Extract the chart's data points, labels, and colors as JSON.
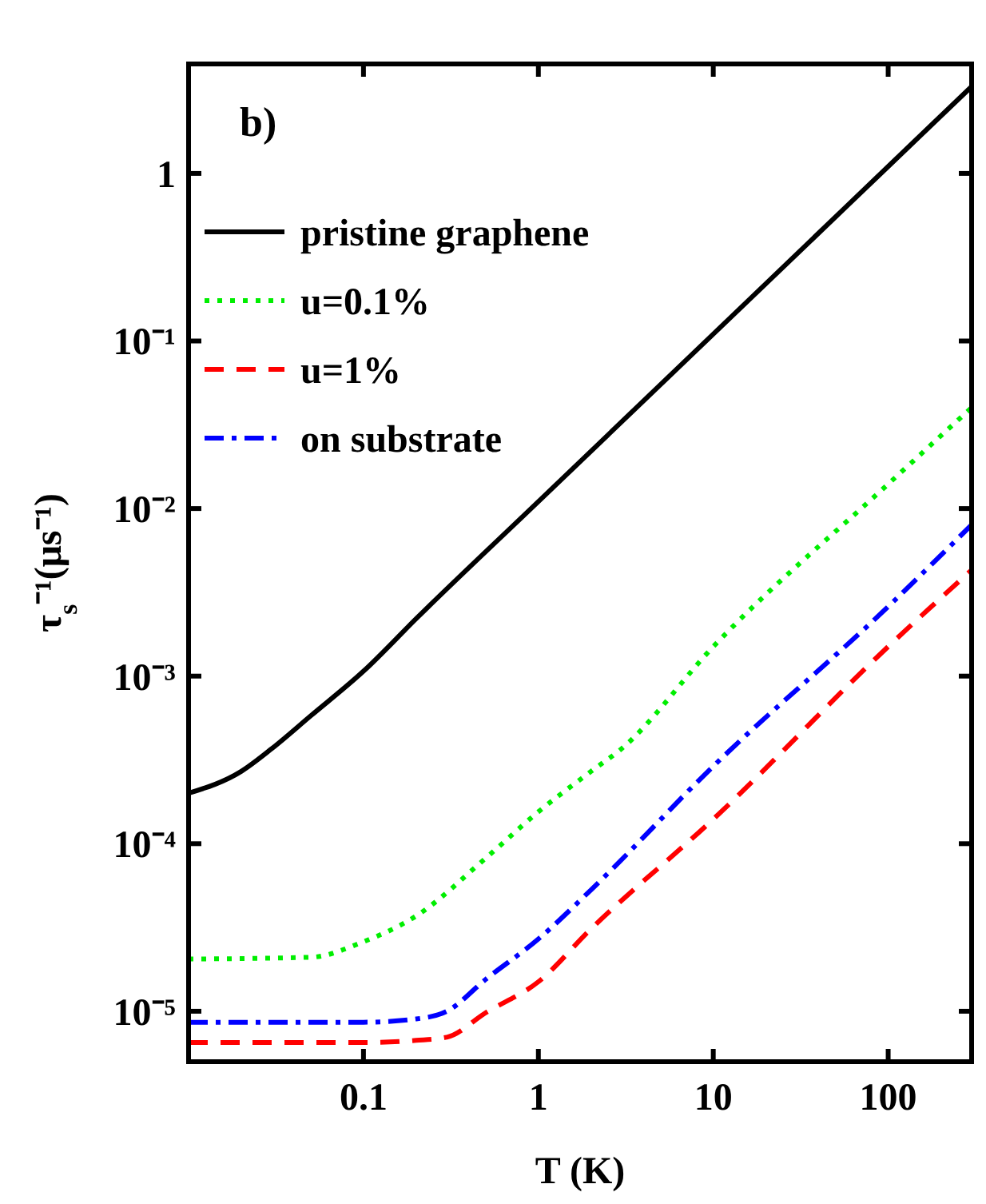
{
  "chart_data": {
    "type": "line",
    "xlabel": "T (K)",
    "ylabel": "τ$_{s}$⁻¹(μs⁻¹)",
    "log": "xy",
    "xlim": [
      0.01,
      300
    ],
    "ylim": [
      5e-06,
      4.5
    ],
    "xticks": [
      0.1,
      1,
      10,
      100
    ],
    "yticks": [
      {
        "value": 1e-05,
        "label": "10⁻⁵"
      },
      {
        "value": 0.0001,
        "label": "10⁻⁴"
      },
      {
        "value": 0.001,
        "label": "10⁻³"
      },
      {
        "value": 0.01,
        "label": "10⁻²"
      },
      {
        "value": 0.1,
        "label": "10⁻¹"
      },
      1
    ],
    "grid": false,
    "legend": "top left",
    "annotations": [
      "b)"
    ],
    "series": [
      {
        "name": "pristine graphene",
        "color": "#000000",
        "line_style": "solid",
        "x": [
          0.01,
          0.02,
          0.03,
          0.05,
          0.1,
          0.2,
          1,
          10,
          100,
          300
        ],
        "values": [
          0.0002,
          0.00027,
          0.00037,
          0.00058,
          0.00107,
          0.0022,
          0.011,
          0.11,
          1.1,
          3.3
        ]
      },
      {
        "name": "u=0.1%",
        "color": "#00ee00",
        "line_style": "dotted",
        "x": [
          0.01,
          0.05,
          0.1,
          0.2,
          0.5,
          1,
          2,
          3,
          10,
          100,
          300
        ],
        "values": [
          2.05e-05,
          2.1e-05,
          2.6e-05,
          3.7e-05,
          8.2e-05,
          0.000155,
          0.00027,
          0.00037,
          0.0015,
          0.014,
          0.04
        ]
      },
      {
        "name": "u=1%",
        "color": "#ff0000",
        "line_style": "dashed",
        "x": [
          0.01,
          0.1,
          0.2,
          0.3,
          0.5,
          1,
          2,
          10,
          100,
          300
        ],
        "values": [
          6.5e-06,
          6.5e-06,
          6.7e-06,
          7e-06,
          9.8e-06,
          1.5e-05,
          3.1e-05,
          0.00014,
          0.0015,
          0.0043
        ]
      },
      {
        "name": "on substrate",
        "color": "#0000ff",
        "line_style": "dashdot",
        "x": [
          0.01,
          0.1,
          0.2,
          0.3,
          0.5,
          1,
          2,
          10,
          100,
          300
        ],
        "values": [
          8.6e-06,
          8.6e-06,
          9e-06,
          1e-05,
          1.55e-05,
          2.7e-05,
          5.3e-05,
          0.00029,
          0.0026,
          0.008
        ]
      }
    ]
  }
}
